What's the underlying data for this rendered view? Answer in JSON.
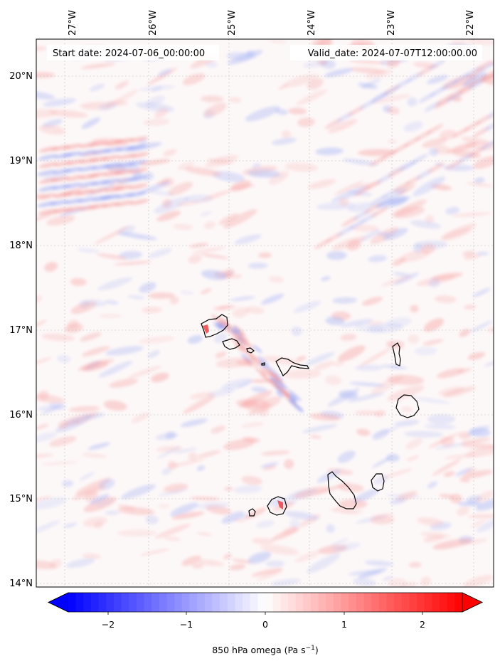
{
  "header": {
    "start_date": "Start date: 2024-07-06_00:00:00",
    "valid_date": "Valid_date: 2024-07-07T12:00:00.00"
  },
  "map": {
    "lon_labels": [
      "27°W",
      "26°W",
      "25°W",
      "24°W",
      "23°W",
      "22°W"
    ],
    "lat_labels": [
      "20°N",
      "19°N",
      "18°N",
      "17°N",
      "16°N",
      "15°N",
      "14°N"
    ],
    "lon_range": [
      -27.35,
      -21.85
    ],
    "lat_range": [
      13.95,
      20.4
    ],
    "grid": true,
    "coastline_color": "#000000",
    "islands": [
      "Santo Antão",
      "São Vicente",
      "Santa Luzia",
      "São Nicolau",
      "Sal",
      "Boa Vista",
      "Brava",
      "Fogo",
      "Santiago",
      "Maio"
    ]
  },
  "colorbar": {
    "ticks": [
      "−2",
      "−1",
      "0",
      "1",
      "2"
    ],
    "label_main": "850 hPa omega (Pa s",
    "label_sup": "−1",
    "label_close": ")",
    "range": [
      -2.6,
      2.6
    ],
    "cmap": "bwr",
    "low_color": "#0000ff",
    "mid_color": "#ffffff",
    "high_color": "#ff0000"
  }
}
